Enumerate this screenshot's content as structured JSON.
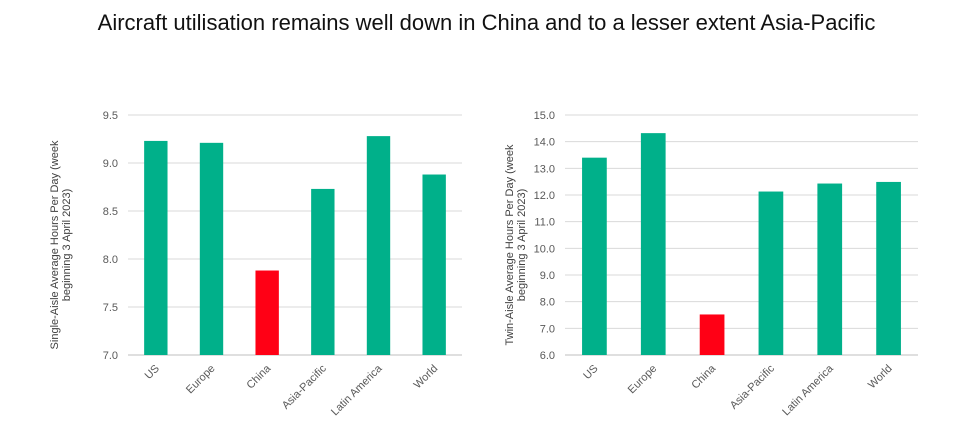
{
  "title": "Aircraft utilisation remains well down in China and to a lesser extent Asia-Pacific",
  "colors": {
    "bar": "#00B08A",
    "highlight": "#FF0015",
    "grid": "#D9D9D9",
    "axis": "#BFBFBF"
  },
  "chart_data": [
    {
      "type": "bar",
      "categories": [
        "US",
        "Europe",
        "China",
        "Asia-Pacific",
        "Latin America",
        "World"
      ],
      "values": [
        9.23,
        9.21,
        7.88,
        8.73,
        9.28,
        8.88
      ],
      "highlight_index": 2,
      "ylabel_lines": [
        "Single-Aisle Average Hours Per Day (week",
        "beginning 3 April 2023)"
      ],
      "ylim": [
        7.0,
        9.5
      ],
      "yticks": [
        "7.0",
        "7.5",
        "8.0",
        "8.5",
        "9.0",
        "9.5"
      ],
      "grid": true
    },
    {
      "type": "bar",
      "categories": [
        "US",
        "Europe",
        "China",
        "Asia-Pacific",
        "Latin America",
        "World"
      ],
      "values": [
        13.4,
        14.32,
        7.52,
        12.13,
        12.43,
        12.49
      ],
      "highlight_index": 2,
      "ylabel_lines": [
        "Twin-Aisle Average Hours Per Day (week",
        "beginning 3 April 2023)"
      ],
      "ylim": [
        6.0,
        15.0
      ],
      "yticks": [
        "6.0",
        "7.0",
        "8.0",
        "9.0",
        "10.0",
        "11.0",
        "12.0",
        "13.0",
        "14.0",
        "15.0"
      ],
      "grid": true
    }
  ]
}
